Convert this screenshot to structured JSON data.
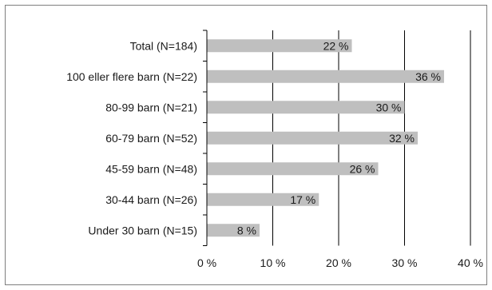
{
  "chart_data": {
    "type": "bar",
    "orientation": "horizontal",
    "title": "",
    "xlabel": "",
    "ylabel": "",
    "categories": [
      "Total (N=184)",
      "100 eller flere barn (N=22)",
      "80-99 barn (N=21)",
      "60-79 barn (N=52)",
      "45-59 barn (N=48)",
      "30-44 barn (N=26)",
      "Under 30 barn (N=15)"
    ],
    "values": [
      22,
      36,
      30,
      32,
      26,
      17,
      8
    ],
    "value_labels": [
      "22 %",
      "36 %",
      "30 %",
      "32 %",
      "26 %",
      "17 %",
      "8 %"
    ],
    "xlim": [
      0,
      40
    ],
    "x_ticks": [
      0,
      10,
      20,
      30,
      40
    ],
    "x_tick_labels": [
      "0 %",
      "10 %",
      "20 %",
      "30 %",
      "40 %"
    ],
    "grid": "vertical",
    "legend": "none",
    "colors": {
      "bar": "#bfbfbf",
      "grid": "#000000",
      "frame": "#7f7f7f"
    }
  }
}
